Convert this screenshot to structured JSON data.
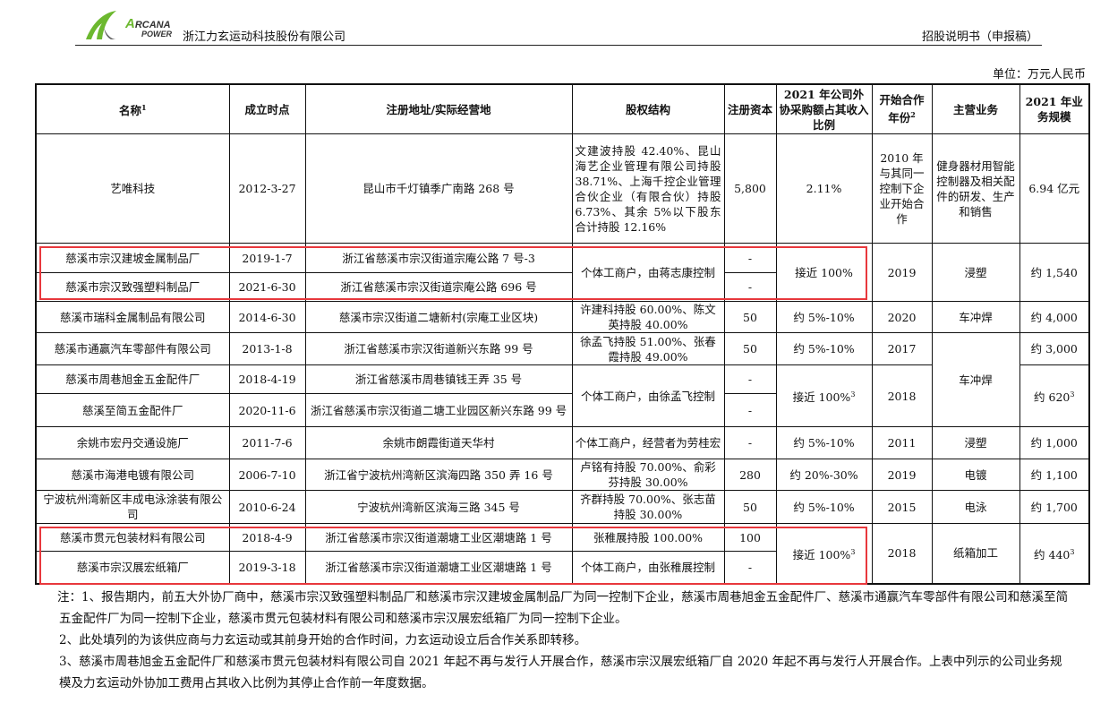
{
  "header": {
    "company": "浙江力玄运动科技股份有限公司",
    "logo_text": "ARCANA POWER",
    "document": "招股说明书（申报稿）"
  },
  "unit": "单位：万元人民币",
  "columns": [
    "名称",
    "成立时点",
    "注册地址/实际经营地",
    "股权结构",
    "注册资本",
    "2021 年公司外协采购额占其收入比例",
    "开始合作年份",
    "主营业务",
    "2021 年业务规模"
  ],
  "column_footnotes": {
    "name": "1",
    "start_year": "2"
  },
  "rows": [
    {
      "name": "艺唯科技",
      "date": "2012-3-27",
      "address": "昆山市千灯镇季广南路 268 号",
      "equity": "文建波持股 42.40%、昆山海艺企业管理有限公司持股 38.71%、上海千控企业管理合伙企业（有限合伙）持股 6.73%、其余 5%以下股东合计持股 12.16%",
      "capital": "5,800",
      "ratio": "2.11%",
      "start": "2010 年与其同一控制下企业开始合作",
      "business": "健身器材用智能控制器及相关配件的研发、生产和销售",
      "scale": "6.94 亿元"
    },
    {
      "name": "慈溪市宗汉建坡金属制品厂",
      "date": "2019-1-7",
      "address": "浙江省慈溪市宗汉街道宗庵公路 7 号-3",
      "equity": "个体工商户，由蒋志康控制",
      "capital": "-",
      "ratio": "接近 100%",
      "start": "2019",
      "business": "浸塑",
      "scale": "约 1,540"
    },
    {
      "name": "慈溪市宗汉致强塑料制品厂",
      "date": "2021-6-30",
      "address": "浙江省慈溪市宗汉街道宗庵公路 696 号",
      "capital": "-"
    },
    {
      "name": "慈溪市瑞科金属制品有限公司",
      "date": "2014-6-30",
      "address": "慈溪市宗汉街道二塘新村(宗庵工业区块)",
      "equity": "许建科持股 60.00%、陈文英持股 40.00%",
      "capital": "50",
      "ratio": "约 5%-10%",
      "start": "2020",
      "business": "车冲焊",
      "scale": "约 4,000"
    },
    {
      "name": "慈溪市通赢汽车零部件有限公司",
      "date": "2013-1-8",
      "address": "浙江省慈溪市宗汉街道新兴东路 99 号",
      "equity": "徐孟飞持股 51.00%、张春霞持股 49.00%",
      "capital": "50",
      "ratio": "约 5%-10%",
      "start": "2017",
      "business": "车冲焊",
      "scale": "约 3,000"
    },
    {
      "name": "慈溪市周巷旭金五金配件厂",
      "date": "2018-4-19",
      "address": "浙江省慈溪市周巷镇钱王弄 35 号",
      "equity": "个体工商户，由徐孟飞控制",
      "capital": "-",
      "ratio": "接近 100%",
      "ratio_note": "3",
      "start": "2018",
      "scale": "约 620",
      "scale_note": "3"
    },
    {
      "name": "慈溪至简五金配件厂",
      "date": "2020-11-6",
      "address": "浙江省慈溪市宗汉街道二塘工业园区新兴东路 99 号",
      "capital": "-"
    },
    {
      "name": "余姚市宏丹交通设施厂",
      "date": "2011-7-6",
      "address": "余姚市朗霞街道天华村",
      "equity": "个体工商户，经营者为劳桂宏",
      "capital": "-",
      "ratio": "约 5%-10%",
      "start": "2011",
      "business": "浸塑",
      "scale": "约 1,000"
    },
    {
      "name": "慈溪市海港电镀有限公司",
      "date": "2006-7-10",
      "address": "浙江省宁波杭州湾新区滨海四路 350 弄 16 号",
      "equity": "卢铭有持股 70.00%、俞彩芬持股 30.00%",
      "capital": "280",
      "ratio": "约 20%-30%",
      "start": "2019",
      "business": "电镀",
      "scale": "约 1,100"
    },
    {
      "name": "宁波杭州湾新区丰成电泳涂装有限公司",
      "date": "2010-6-24",
      "address": "宁波杭州湾新区滨海三路 345 号",
      "equity": "齐群持股 70.00%、张志苗持股 30.00%",
      "capital": "50",
      "ratio": "约 5%-10%",
      "start": "2015",
      "business": "电泳",
      "scale": "约 1,700"
    },
    {
      "name": "慈溪市贯元包装材料有限公司",
      "date": "2018-4-9",
      "address": "浙江省慈溪市宗汉街道潮塘工业区潮塘路 1 号",
      "equity": "张稚展持股 100.00%",
      "capital": "100",
      "ratio": "接近 100%",
      "ratio_note": "3",
      "start": "2018",
      "business": "纸箱加工",
      "scale": "约 440",
      "scale_note": "3"
    },
    {
      "name": "慈溪市宗汉展宏纸箱厂",
      "date": "2019-3-18",
      "address": "浙江省慈溪市宗汉街道潮塘工业区潮塘路 1 号",
      "equity": "个体工商户，由张稚展控制",
      "capital": "-"
    }
  ],
  "notes": [
    "注：1、报告期内，前五大外协厂商中，慈溪市宗汉致强塑料制品厂和慈溪市宗汉建坡金属制品厂为同一控制下企业，慈溪市周巷旭金五金配件厂、慈溪市通赢汽车零部件有限公司和慈溪至简五金配件厂为同一控制下企业，慈溪市贯元包装材料有限公司和慈溪市宗汉展宏纸箱厂为同一控制下企业。",
    "2、此处填列的为该供应商与力玄运动或其前身开始的合作时间，力玄运动设立后合作关系即转移。",
    "3、慈溪市周巷旭金五金配件厂和慈溪市贯元包装材料有限公司自 2021 年起不再与发行人开展合作，慈溪市宗汉展宏纸箱厂自 2020 年起不再与发行人开展合作。上表中列示的公司业务规模及力玄运动外协加工费用占其收入比例为其停止合作前一年度数据。"
  ],
  "highlight_color": "#e8383d",
  "brand_color": "#6cb82f"
}
